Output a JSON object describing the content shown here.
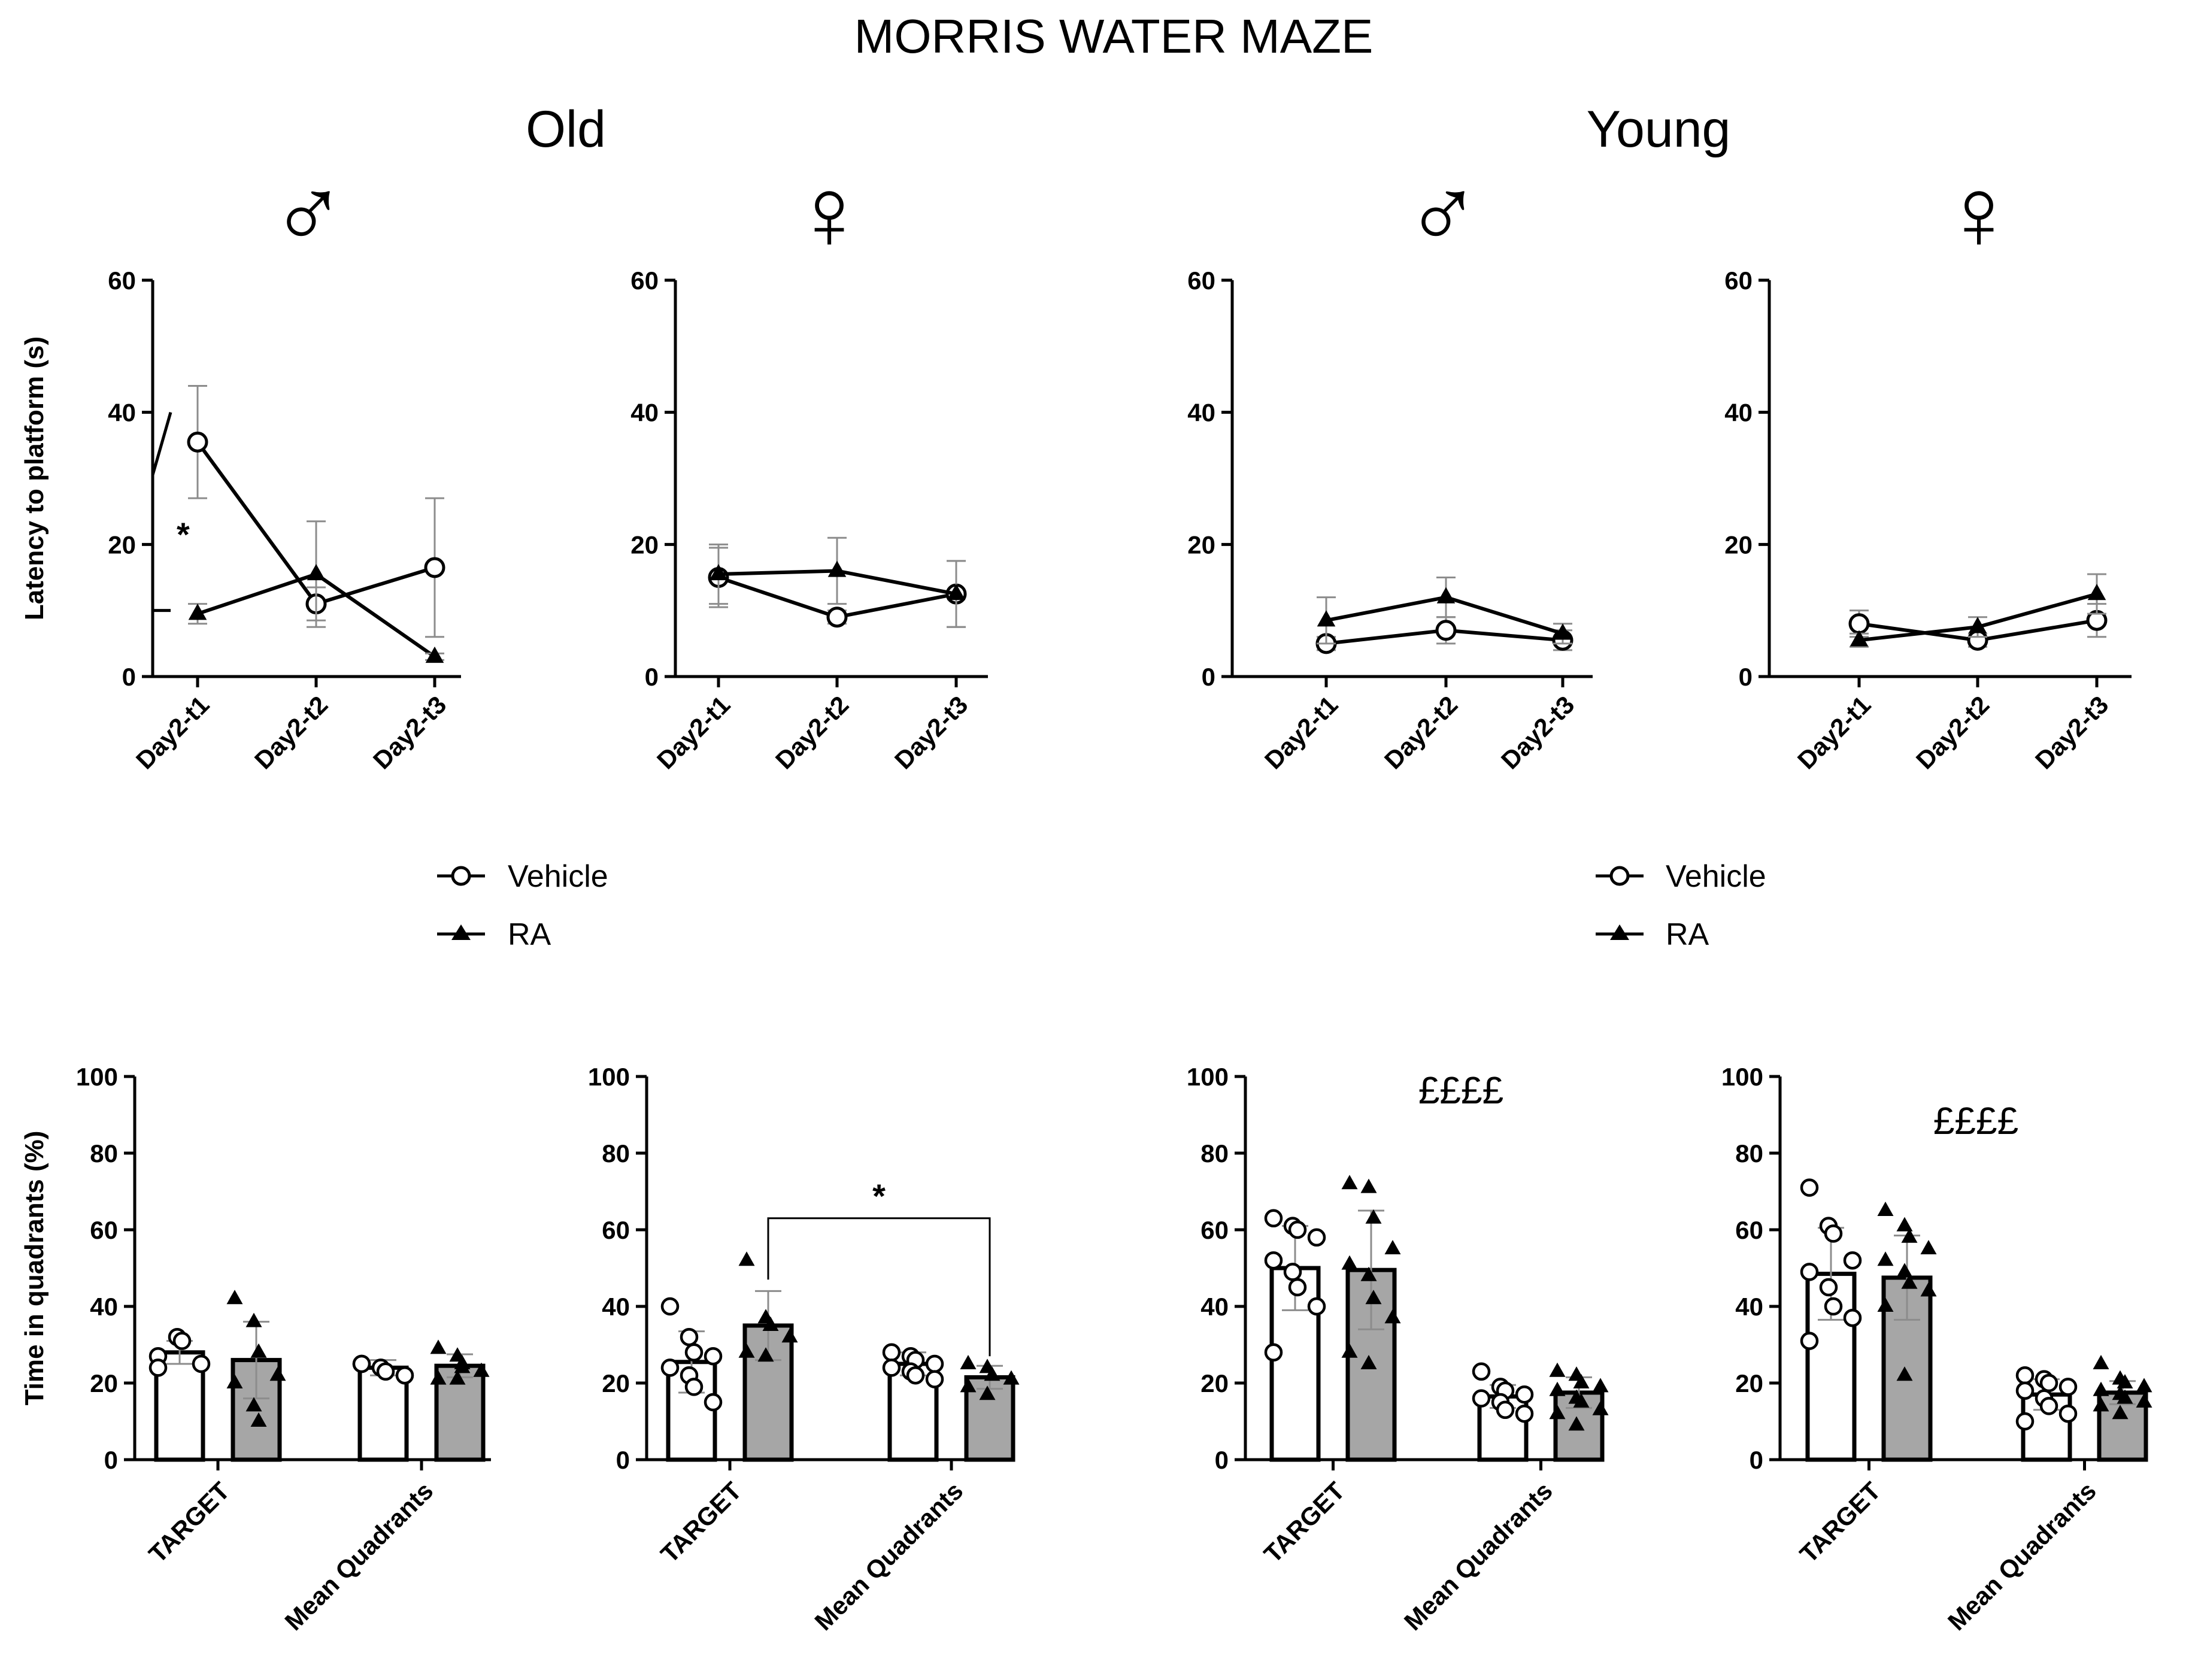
{
  "title": "MORRIS WATER MAZE",
  "groups": [
    {
      "label": "Old"
    },
    {
      "label": "Young"
    }
  ],
  "sex_symbols": [
    "♂",
    "♀",
    "♂",
    "♀"
  ],
  "legend": [
    {
      "label": "Vehicle",
      "marker": "circle-open"
    },
    {
      "label": "RA",
      "marker": "triangle-filled"
    }
  ],
  "colors": {
    "ink": "#000000",
    "vehicle_bar": "#ffffff",
    "ra_bar": "#a6a6a6",
    "error_bar": "#8c8c8c"
  },
  "chart_data": [
    {
      "type": "line",
      "group": "Old",
      "sex": "male",
      "ylabel": "Latency to platform (s)",
      "ylim": [
        0,
        60
      ],
      "yticks": [
        0,
        20,
        40,
        60
      ],
      "categories": [
        "Day2-t1",
        "Day2-t2",
        "Day2-t3"
      ],
      "series": [
        {
          "name": "Vehicle",
          "values": [
            35.5,
            11,
            16.5
          ],
          "err": [
            8.5,
            2.5,
            10.5
          ]
        },
        {
          "name": "RA",
          "values": [
            9.5,
            15.5,
            3
          ],
          "err": [
            1.5,
            8,
            0.5
          ]
        }
      ],
      "annotations": [
        {
          "text": "*",
          "compare": "Day2-t1"
        }
      ]
    },
    {
      "type": "line",
      "group": "Old",
      "sex": "female",
      "ylabel": "",
      "ylim": [
        0,
        60
      ],
      "yticks": [
        0,
        20,
        40,
        60
      ],
      "categories": [
        "Day2-t1",
        "Day2-t2",
        "Day2-t3"
      ],
      "series": [
        {
          "name": "Vehicle",
          "values": [
            15,
            9,
            12.5
          ],
          "err": [
            4.5,
            1,
            5
          ]
        },
        {
          "name": "RA",
          "values": [
            15.5,
            16,
            12.5
          ],
          "err": [
            4.5,
            5,
            5
          ]
        }
      ]
    },
    {
      "type": "line",
      "group": "Young",
      "sex": "male",
      "ylabel": "",
      "ylim": [
        0,
        60
      ],
      "yticks": [
        0,
        20,
        40,
        60
      ],
      "categories": [
        "Day2-t1",
        "Day2-t2",
        "Day2-t3"
      ],
      "series": [
        {
          "name": "Vehicle",
          "values": [
            5,
            7,
            5.5
          ],
          "err": [
            1,
            2,
            1.5
          ]
        },
        {
          "name": "RA",
          "values": [
            8.5,
            12,
            6.5
          ],
          "err": [
            3.5,
            3,
            1.5
          ]
        }
      ]
    },
    {
      "type": "line",
      "group": "Young",
      "sex": "female",
      "ylabel": "",
      "ylim": [
        0,
        60
      ],
      "yticks": [
        0,
        20,
        40,
        60
      ],
      "categories": [
        "Day2-t1",
        "Day2-t2",
        "Day2-t3"
      ],
      "series": [
        {
          "name": "Vehicle",
          "values": [
            8,
            5.5,
            8.5
          ],
          "err": [
            2,
            1,
            2.5
          ]
        },
        {
          "name": "RA",
          "values": [
            5.5,
            7.5,
            12.5
          ],
          "err": [
            1,
            1.5,
            3
          ]
        }
      ]
    },
    {
      "type": "bar",
      "group": "Old",
      "sex": "male",
      "ylabel": "Time in quadrants (%)",
      "ylim": [
        0,
        100
      ],
      "yticks": [
        0,
        20,
        40,
        60,
        80,
        100
      ],
      "categories": [
        "TARGET",
        "Mean Quadrants"
      ],
      "series": [
        {
          "name": "Vehicle",
          "values": [
            28,
            24
          ],
          "err": [
            3,
            2
          ],
          "points": [
            [
              27,
              32,
              31,
              25,
              24
            ],
            [
              25,
              24,
              23,
              22,
              25
            ]
          ]
        },
        {
          "name": "RA",
          "values": [
            26,
            24.5
          ],
          "err": [
            10,
            3
          ],
          "points": [
            [
              42,
              36,
              28,
              22,
              20,
              14,
              10
            ],
            [
              29,
              27,
              25,
              23,
              21,
              21,
              24
            ]
          ]
        }
      ],
      "annotations": []
    },
    {
      "type": "bar",
      "group": "Old",
      "sex": "female",
      "ylabel": "",
      "ylim": [
        0,
        100
      ],
      "yticks": [
        0,
        20,
        40,
        60,
        80,
        100
      ],
      "categories": [
        "TARGET",
        "Mean Quadrants"
      ],
      "series": [
        {
          "name": "Vehicle",
          "values": [
            25.5,
            25
          ],
          "err": [
            8,
            3
          ],
          "points": [
            [
              40,
              32,
              28,
              27,
              24,
              22,
              19,
              15
            ],
            [
              28,
              27,
              26,
              25,
              24,
              23,
              22,
              21
            ]
          ]
        },
        {
          "name": "RA",
          "values": [
            35,
            21.5
          ],
          "err": [
            9,
            3
          ],
          "points": [
            [
              52,
              37,
              35,
              32,
              28,
              27
            ],
            [
              25,
              24,
              22,
              21,
              19,
              17
            ]
          ]
        }
      ],
      "annotations": [
        {
          "text": "*",
          "compare": "RA TARGET vs RA Mean Quadrants"
        }
      ]
    },
    {
      "type": "bar",
      "group": "Young",
      "sex": "male",
      "ylabel": "",
      "ylim": [
        0,
        100
      ],
      "yticks": [
        0,
        20,
        40,
        60,
        80,
        100
      ],
      "categories": [
        "TARGET",
        "Mean Quadrants"
      ],
      "series": [
        {
          "name": "Vehicle",
          "values": [
            50,
            16.5
          ],
          "err": [
            11,
            3
          ],
          "points": [
            [
              63,
              61,
              60,
              58,
              52,
              49,
              45,
              40,
              28
            ],
            [
              23,
              19,
              18,
              17,
              16,
              15,
              13,
              12
            ]
          ]
        },
        {
          "name": "RA",
          "values": [
            49.5,
            17.5
          ],
          "err": [
            15.5,
            4
          ],
          "points": [
            [
              72,
              71,
              63,
              55,
              51,
              48,
              42,
              37,
              28,
              25
            ],
            [
              23,
              22,
              20,
              19,
              18,
              16,
              15,
              13,
              12,
              9
            ]
          ]
        }
      ],
      "annotations": [
        {
          "text": "££££",
          "compare": "TARGET vs Mean Quadrants"
        }
      ]
    },
    {
      "type": "bar",
      "group": "Young",
      "sex": "female",
      "ylabel": "",
      "ylim": [
        0,
        100
      ],
      "yticks": [
        0,
        20,
        40,
        60,
        80,
        100
      ],
      "categories": [
        "TARGET",
        "Mean Quadrants"
      ],
      "series": [
        {
          "name": "Vehicle",
          "values": [
            48.5,
            17
          ],
          "err": [
            12,
            4
          ],
          "points": [
            [
              71,
              61,
              59,
              52,
              49,
              45,
              40,
              37,
              31
            ],
            [
              22,
              21,
              20,
              19,
              18,
              16,
              14,
              12,
              10
            ]
          ]
        },
        {
          "name": "RA",
          "values": [
            47.5,
            17.5
          ],
          "err": [
            11,
            3
          ],
          "points": [
            [
              65,
              61,
              58,
              55,
              52,
              49,
              46,
              44,
              40,
              22
            ],
            [
              25,
              21,
              20,
              19,
              18,
              17,
              16,
              15,
              14,
              12
            ]
          ]
        }
      ],
      "annotations": [
        {
          "text": "££££",
          "compare": "TARGET vs Mean Quadrants"
        }
      ]
    }
  ]
}
